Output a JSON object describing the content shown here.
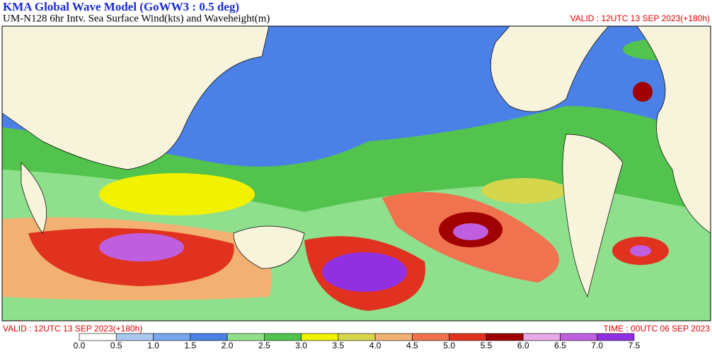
{
  "header": {
    "title": "KMA  Global Wave Model (GoWW3 : 0.5 deg)",
    "subtitle": "UM-N128  6hr Intv. Sea Surface Wind(kts) and Waveheight(m)",
    "valid_top": "VALID : 12UTC 13 SEP 2023(+180h)"
  },
  "footer": {
    "valid": "VALID : 12UTC 13 SEP 2023(+180h)",
    "time": "TIME : 00UTC 06 SEP 2023"
  },
  "colorbar": {
    "ticks": [
      "0.0",
      "0.5",
      "1.0",
      "1.5",
      "2.0",
      "2.5",
      "3.0",
      "3.5",
      "4.0",
      "4.5",
      "5.0",
      "5.5",
      "6.0",
      "6.5",
      "7.0",
      "7.5"
    ],
    "colors": [
      "#ffffff",
      "#a9c9f2",
      "#78a6ee",
      "#4b80e6",
      "#8fe08c",
      "#52c44e",
      "#f2f200",
      "#d6d64c",
      "#f2b072",
      "#f0724e",
      "#e0321e",
      "#a00000",
      "#eaaaea",
      "#c05ee0",
      "#9030e0"
    ]
  }
}
